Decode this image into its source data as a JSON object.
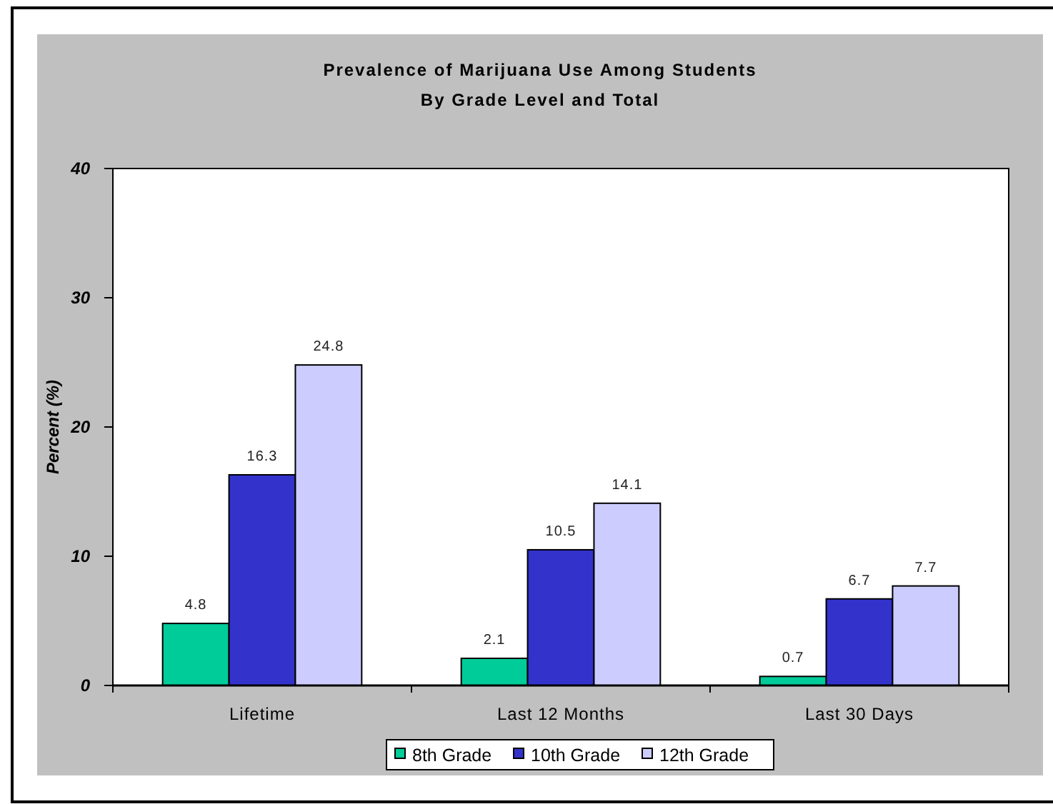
{
  "chart_data": {
    "type": "bar",
    "title": "Prevalence of Marijuana Use Among Students",
    "subtitle": "By Grade Level and Total",
    "ylabel": "Percent (%)",
    "categories": [
      "Lifetime",
      "Last 12 Months",
      "Last 30 Days"
    ],
    "series": [
      {
        "name": "8th Grade",
        "color": "#00cc99",
        "values": [
          4.8,
          2.1,
          0.7
        ]
      },
      {
        "name": "10th Grade",
        "color": "#3333cc",
        "values": [
          16.3,
          10.5,
          6.7
        ]
      },
      {
        "name": "12th Grade",
        "color": "#ccccff",
        "values": [
          24.8,
          14.1,
          7.7
        ]
      }
    ],
    "ylim": [
      0,
      40
    ],
    "yticks": [
      0,
      10,
      20,
      30,
      40
    ],
    "grid": false,
    "legend": "bottom",
    "data_labels": true
  }
}
